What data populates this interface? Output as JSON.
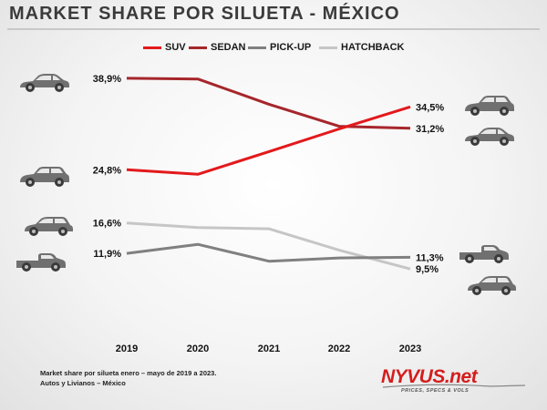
{
  "header": {
    "title": "MARKET SHARE POR SILUETA - MÉXICO"
  },
  "footer": {
    "note_line1": "Market share por silueta enero – mayo de 2019 a 2023.",
    "note_line2": "Autos y Livianos – México",
    "brand_name": "NYVUS.net",
    "brand_tagline": "PRICES, SPECS & VOLS"
  },
  "colors": {
    "SUV": "#e3191c",
    "SEDAN": "#a6262b",
    "PICK-UP": "#808080",
    "HATCHBACK": "#c6c6c6",
    "car_icon": "#707070"
  },
  "chart_data": {
    "type": "line",
    "title": "MARKET SHARE POR SILUETA - MÉXICO",
    "xlabel": "",
    "ylabel": "",
    "categories": [
      "2019",
      "2020",
      "2021",
      "2022",
      "2023"
    ],
    "ylim": [
      7,
      41
    ],
    "grid": false,
    "legend": "top",
    "series": [
      {
        "name": "SUV",
        "values": [
          24.8,
          24.1,
          27.6,
          31.1,
          34.5
        ],
        "start_label": "24,8%",
        "end_label": "34,5%",
        "icon": "suv-car-icon"
      },
      {
        "name": "SEDAN",
        "values": [
          38.9,
          38.8,
          34.9,
          31.5,
          31.2
        ],
        "start_label": "38,9%",
        "end_label": "31,2%",
        "icon": "sedan-car-icon"
      },
      {
        "name": "PICK-UP",
        "values": [
          11.9,
          13.3,
          10.7,
          11.2,
          11.3
        ],
        "start_label": "11,9%",
        "end_label": "11,3%",
        "icon": "pickup-truck-icon"
      },
      {
        "name": "HATCHBACK",
        "values": [
          16.6,
          15.9,
          15.7,
          12.4,
          9.5
        ],
        "start_label": "16,6%",
        "end_label": "9,5%",
        "icon": "hatchback-car-icon"
      }
    ]
  }
}
